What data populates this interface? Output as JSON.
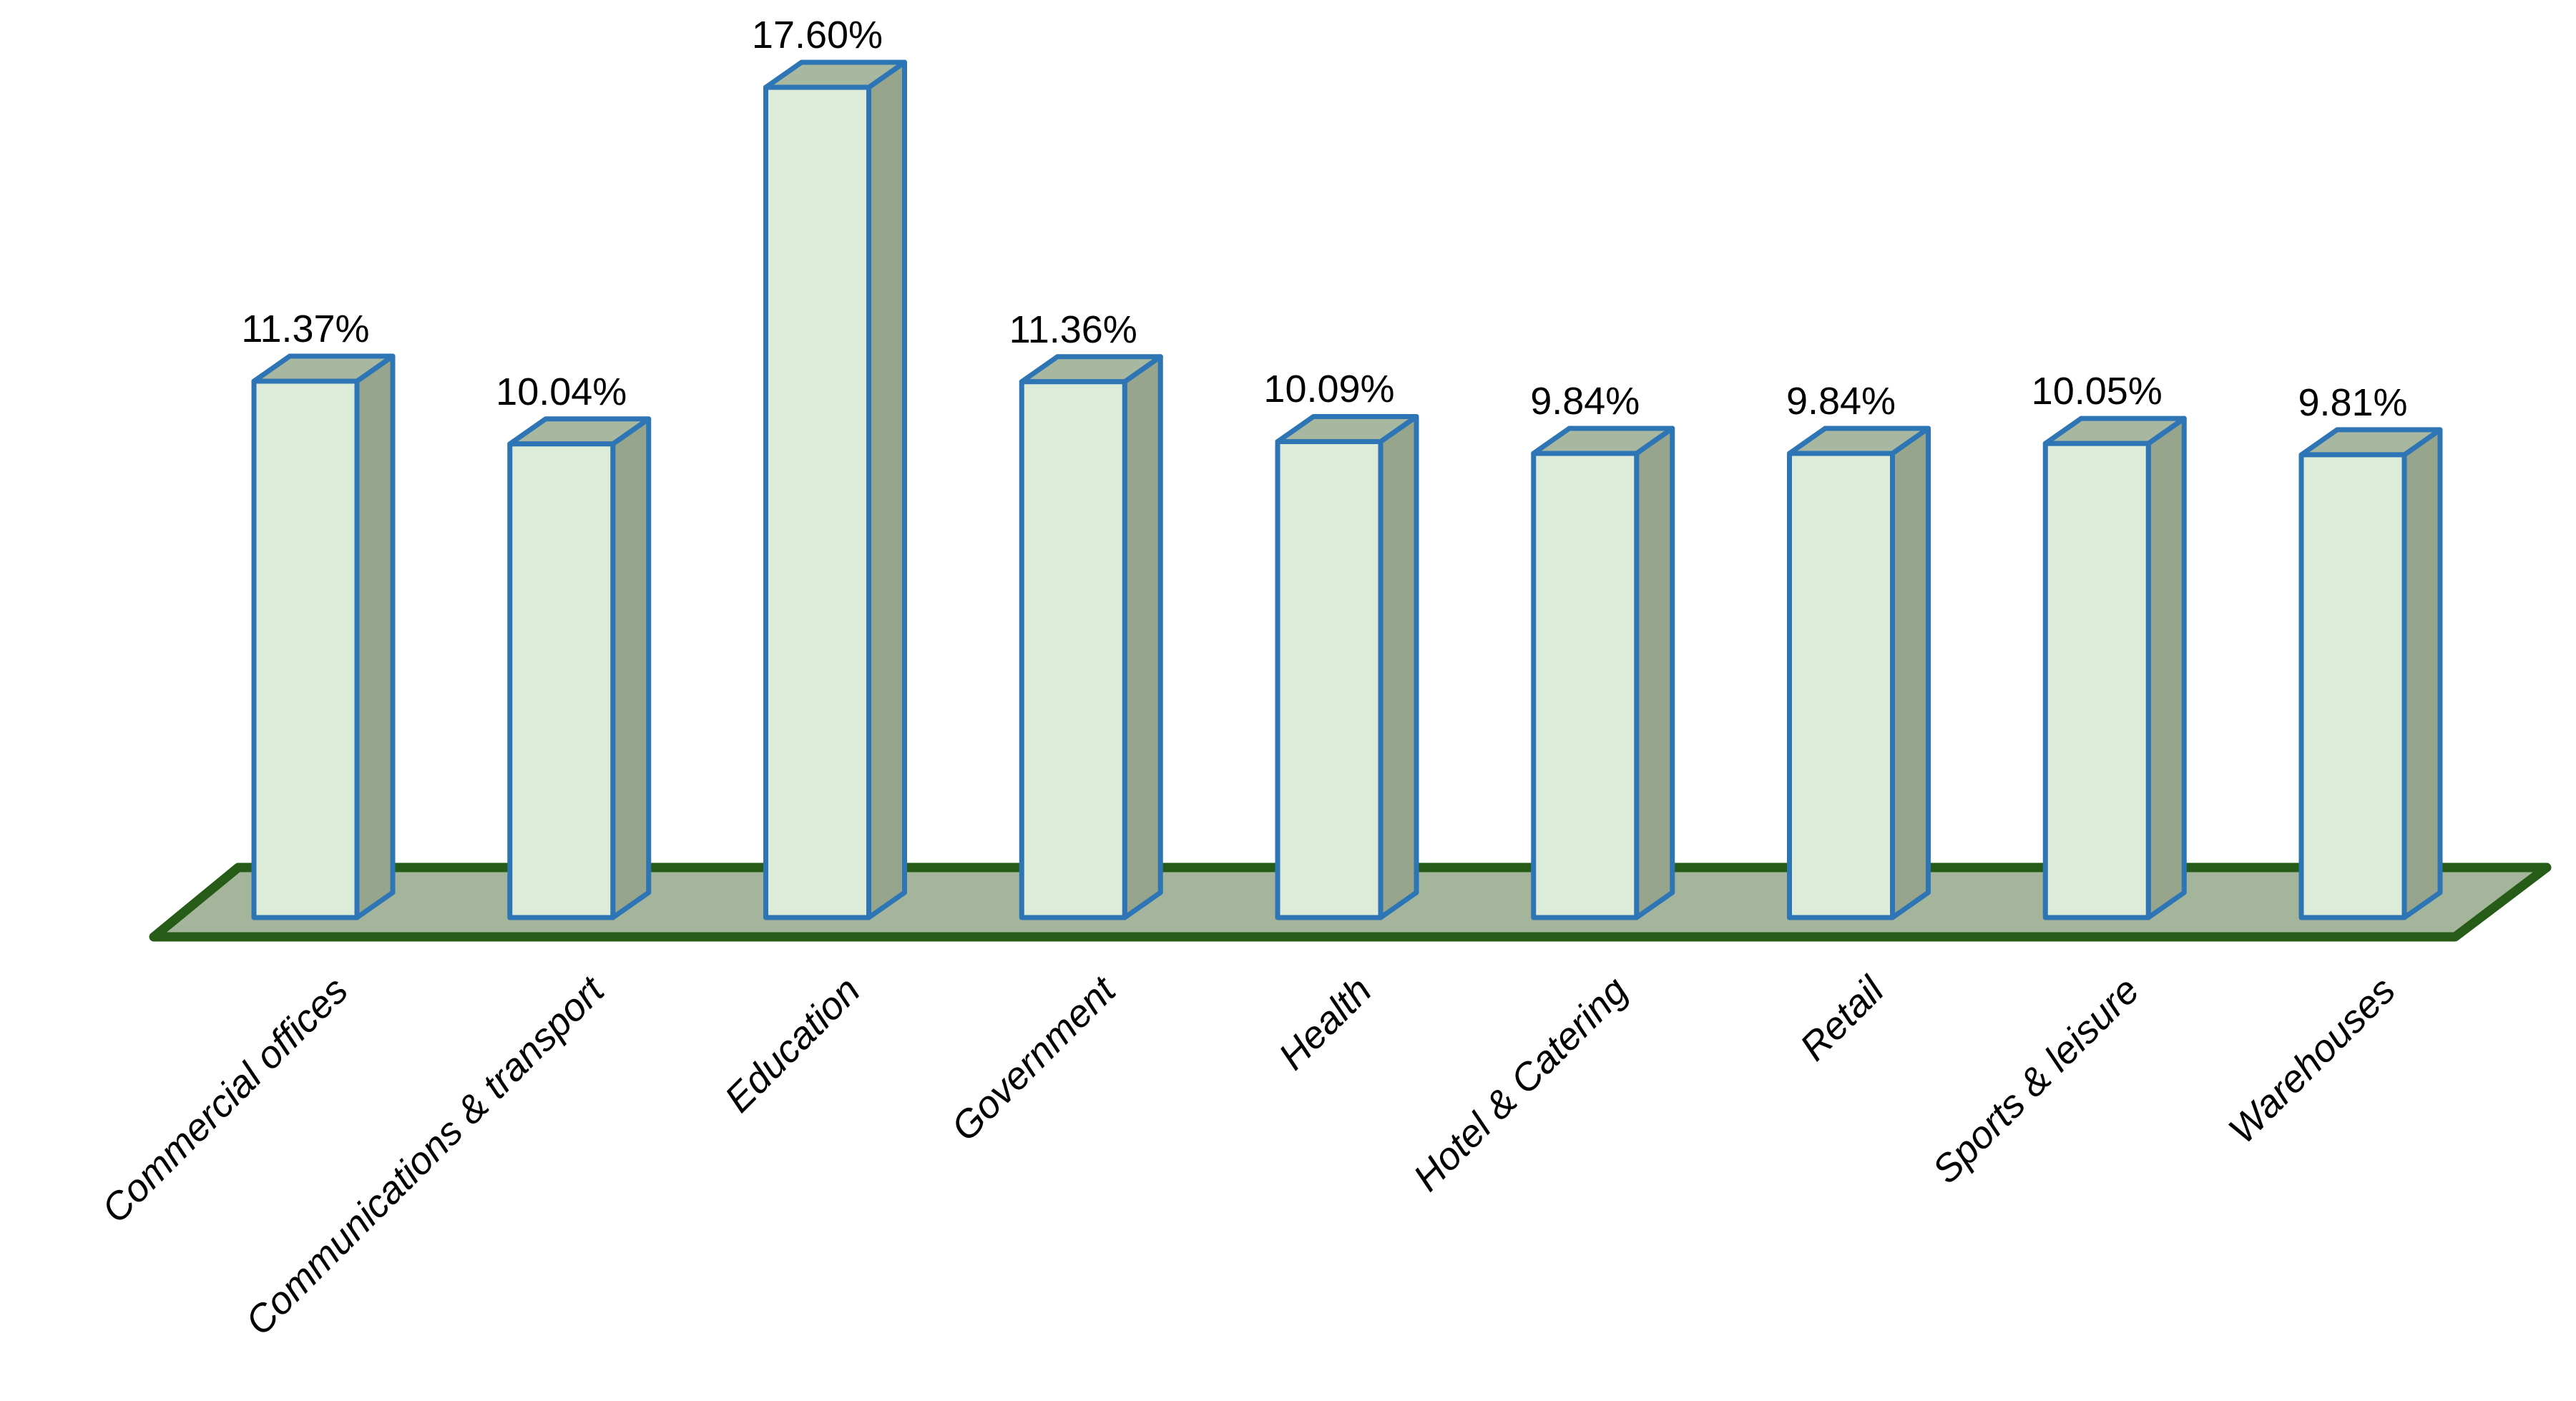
{
  "chart_data": {
    "type": "bar",
    "projection": "3d-column",
    "title": "",
    "categories": [
      "Commercial offices",
      "Communications & transport",
      "Education",
      "Government",
      "Health",
      "Hotel & Catering",
      "Retail",
      "Sports & leisure",
      "Warehouses"
    ],
    "values": [
      11.37,
      10.04,
      17.6,
      11.36,
      10.09,
      9.84,
      9.84,
      10.05,
      9.81
    ],
    "value_labels": [
      "11.37%",
      "10.04%",
      "17.60%",
      "11.36%",
      "10.09%",
      "9.84%",
      "9.84%",
      "10.05%",
      "9.81%"
    ],
    "ylim": [
      0,
      18.5
    ],
    "grid": false,
    "legend": "none",
    "data_labels": "outside-end",
    "category_label_rotation": 45
  },
  "colors": {
    "bar_front": "#dcecd8",
    "bar_top": "#a8b7a0",
    "bar_side": "#96a58c",
    "bar_outline": "#2e75b6",
    "floor_fill": "#a4b59b",
    "floor_border": "#265c17",
    "label_text": "#000000",
    "background": "#ffffff"
  }
}
